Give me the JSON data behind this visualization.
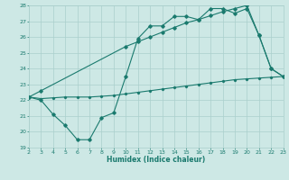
{
  "title": "",
  "xlabel": "Humidex (Indice chaleur)",
  "ylabel": "",
  "xlim": [
    2,
    23
  ],
  "ylim": [
    19,
    28
  ],
  "xticks": [
    2,
    3,
    4,
    5,
    6,
    7,
    8,
    9,
    10,
    11,
    12,
    13,
    14,
    15,
    16,
    17,
    18,
    19,
    20,
    21,
    22,
    23
  ],
  "yticks": [
    19,
    20,
    21,
    22,
    23,
    24,
    25,
    26,
    27,
    28
  ],
  "bg_color": "#cde8e5",
  "grid_color": "#aacfcc",
  "line_color": "#1a7a6e",
  "line1_x": [
    2,
    3,
    4,
    5,
    6,
    7,
    8,
    9,
    10,
    11,
    12,
    13,
    14,
    15,
    16,
    17,
    18,
    19,
    20,
    21,
    22,
    23
  ],
  "line1_y": [
    22.2,
    22.1,
    22.15,
    22.2,
    22.2,
    22.2,
    22.25,
    22.3,
    22.4,
    22.5,
    22.6,
    22.7,
    22.8,
    22.9,
    23.0,
    23.1,
    23.2,
    23.3,
    23.35,
    23.4,
    23.45,
    23.5
  ],
  "line2_x": [
    2,
    3,
    10,
    11,
    12,
    13,
    14,
    15,
    16,
    17,
    18,
    19,
    20,
    21,
    22,
    23
  ],
  "line2_y": [
    22.2,
    22.6,
    25.4,
    25.7,
    26.0,
    26.3,
    26.6,
    26.9,
    27.1,
    27.35,
    27.6,
    27.8,
    28.0,
    26.1,
    24.0,
    23.5
  ],
  "line3_x": [
    2,
    3,
    4,
    5,
    6,
    7,
    8,
    9,
    10,
    11,
    12,
    13,
    14,
    15,
    16,
    17,
    18,
    19,
    20,
    21,
    22,
    23
  ],
  "line3_y": [
    22.2,
    22.0,
    21.1,
    20.4,
    19.5,
    19.5,
    20.9,
    21.2,
    23.5,
    25.9,
    26.7,
    26.7,
    27.3,
    27.3,
    27.1,
    27.8,
    27.8,
    27.5,
    27.8,
    26.1,
    24.0,
    23.5
  ]
}
